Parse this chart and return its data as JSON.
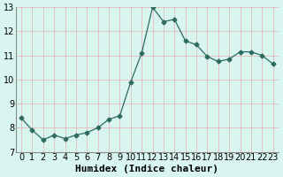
{
  "x": [
    0,
    1,
    2,
    3,
    4,
    5,
    6,
    7,
    8,
    9,
    10,
    11,
    12,
    13,
    14,
    15,
    16,
    17,
    18,
    19,
    20,
    21,
    22,
    23
  ],
  "y": [
    8.4,
    7.9,
    7.5,
    7.7,
    7.55,
    7.7,
    7.8,
    8.0,
    8.35,
    8.5,
    9.9,
    11.1,
    13.0,
    12.4,
    12.5,
    11.6,
    11.45,
    10.95,
    10.75,
    10.85,
    11.15,
    11.15,
    11.0,
    10.65
  ],
  "xlabel": "Humidex (Indice chaleur)",
  "xlim": [
    -0.5,
    23.5
  ],
  "ylim": [
    7,
    13
  ],
  "xticks": [
    0,
    1,
    2,
    3,
    4,
    5,
    6,
    7,
    8,
    9,
    10,
    11,
    12,
    13,
    14,
    15,
    16,
    17,
    18,
    19,
    20,
    21,
    22,
    23
  ],
  "yticks": [
    7,
    8,
    9,
    10,
    11,
    12,
    13
  ],
  "line_color": "#2e6b5e",
  "marker": "D",
  "marker_size": 2.5,
  "bg_color": "#d8f5f0",
  "grid_color": "#e8b0b0",
  "xlabel_fontsize": 8,
  "tick_fontsize": 7
}
